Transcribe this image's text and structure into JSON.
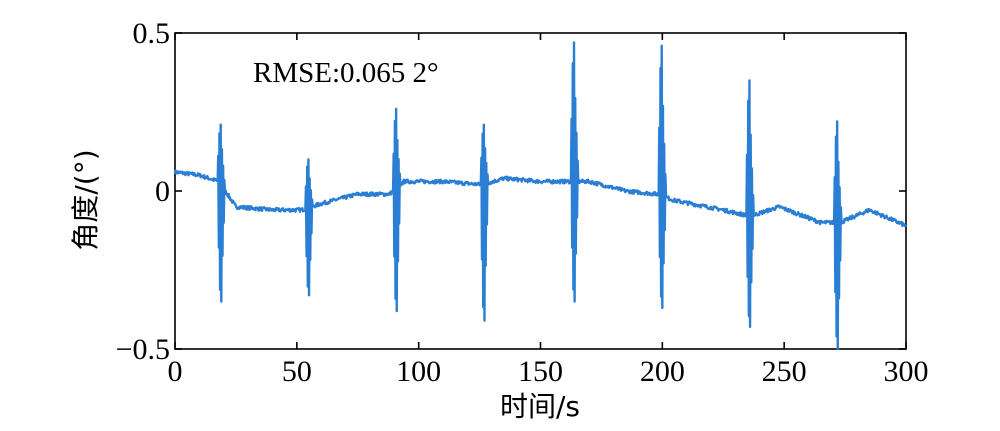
{
  "chart_data": {
    "type": "line",
    "title": "",
    "xlabel": "时间/s",
    "ylabel": "角度/(°)",
    "xlim": [
      0,
      300
    ],
    "ylim": [
      -0.5,
      0.5
    ],
    "x_ticks": [
      0,
      50,
      100,
      150,
      200,
      250,
      300
    ],
    "y_ticks": [
      -0.5,
      0,
      0.5
    ],
    "x_tick_labels": [
      "0",
      "50",
      "100",
      "150",
      "200",
      "250",
      "300"
    ],
    "y_tick_labels": [
      "−0.5",
      "0",
      "0.5"
    ],
    "grid": false,
    "annotation": "RMSE:0.065 2°",
    "color": "#2a7fd4",
    "series": [
      {
        "baseline": [
          [
            0,
            0.06
          ],
          [
            10,
            0.05
          ],
          [
            18,
            0.03
          ],
          [
            25,
            -0.05
          ],
          [
            40,
            -0.06
          ],
          [
            52,
            -0.06
          ],
          [
            60,
            -0.04
          ],
          [
            75,
            -0.01
          ],
          [
            88,
            -0.01
          ],
          [
            94,
            0.03
          ],
          [
            110,
            0.03
          ],
          [
            126,
            0.02
          ],
          [
            135,
            0.04
          ],
          [
            150,
            0.03
          ],
          [
            163,
            0.03
          ],
          [
            170,
            0.03
          ],
          [
            185,
            0.0
          ],
          [
            198,
            -0.01
          ],
          [
            205,
            -0.03
          ],
          [
            225,
            -0.06
          ],
          [
            236,
            -0.08
          ],
          [
            248,
            -0.05
          ],
          [
            265,
            -0.1
          ],
          [
            273,
            -0.1
          ],
          [
            285,
            -0.06
          ],
          [
            300,
            -0.11
          ]
        ],
        "spikes": [
          {
            "x": 19,
            "max": 0.21,
            "min": -0.35
          },
          {
            "x": 55,
            "max": 0.1,
            "min": -0.33
          },
          {
            "x": 91,
            "max": 0.26,
            "min": -0.38
          },
          {
            "x": 127,
            "max": 0.21,
            "min": -0.41
          },
          {
            "x": 164,
            "max": 0.47,
            "min": -0.35
          },
          {
            "x": 200,
            "max": 0.46,
            "min": -0.37
          },
          {
            "x": 236,
            "max": 0.35,
            "min": -0.43
          },
          {
            "x": 272,
            "max": 0.22,
            "min": -0.5
          }
        ]
      }
    ]
  }
}
